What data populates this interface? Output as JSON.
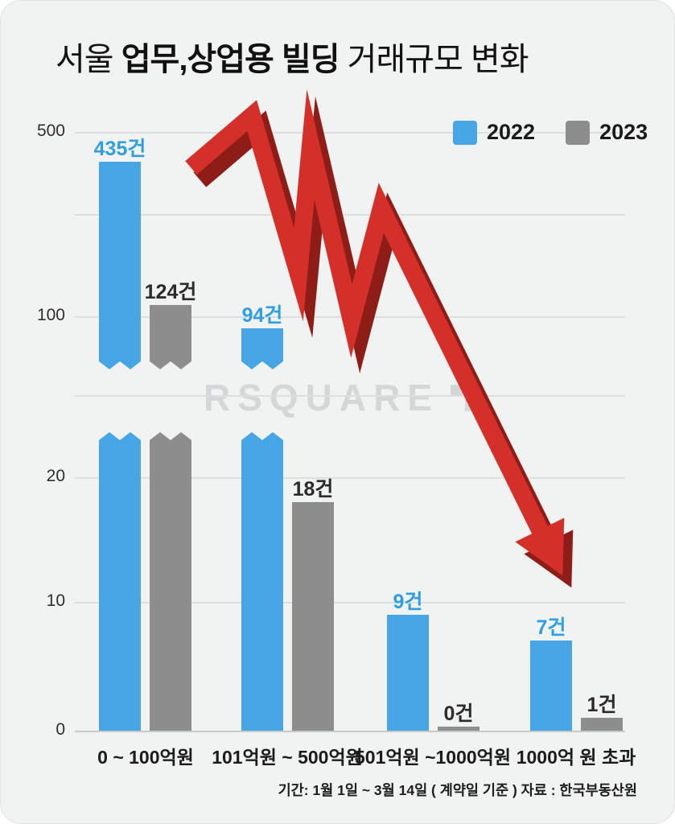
{
  "page": {
    "title_prefix": "서울 ",
    "title_bold": "업무,상업용 빌딩",
    "title_suffix": " 거래규모 변화",
    "watermark": "RSQUARE",
    "footer": "기간: 1월 1일 ~ 3월 14일 ( 계약일 기준 ) 자료 : 한국부동산원"
  },
  "chart_data": {
    "type": "bar",
    "title": "서울 업무,상업용 빌딩 거래규모 변화",
    "categories": [
      "0 ~ 100억원",
      "101억원 ~ 500억원",
      "501억원 ~1000억원",
      "1000억 원 초과"
    ],
    "series": [
      {
        "name": "2022",
        "color": "#45a5e5",
        "values": [
          435,
          94,
          9,
          7
        ],
        "value_labels": [
          "435건",
          "94건",
          "9건",
          "7건"
        ]
      },
      {
        "name": "2023",
        "color": "#8d8d8d",
        "values": [
          124,
          18,
          0,
          1
        ],
        "value_labels": [
          "124건",
          "18건",
          "0건",
          "1건"
        ]
      }
    ],
    "unit": "건",
    "y_ticks": [
      0,
      10,
      20,
      100,
      500
    ],
    "y_axis_nonlinear": true,
    "axis_break_on_tall_bars": true,
    "grid": true,
    "legend_position": "top-right",
    "trend_arrow_color": "#d42f29",
    "trend_arrow_dark_color": "#8e1d18"
  }
}
